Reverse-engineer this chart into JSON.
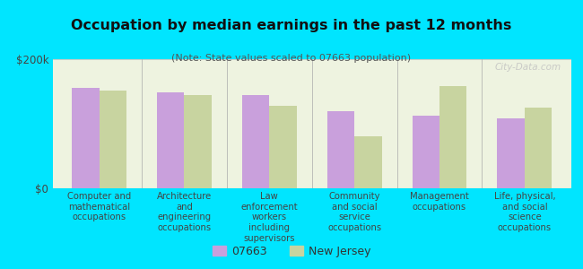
{
  "title": "Occupation by median earnings in the past 12 months",
  "subtitle": "(Note: State values scaled to 07663 population)",
  "categories": [
    "Computer and\nmathematical\noccupations",
    "Architecture\nand\nengineering\noccupations",
    "Law\nenforcement\nworkers\nincluding\nsupervisors",
    "Community\nand social\nservice\noccupations",
    "Management\noccupations",
    "Life, physical,\nand social\nscience\noccupations"
  ],
  "values_07663": [
    155000,
    148000,
    145000,
    120000,
    113000,
    108000
  ],
  "values_nj": [
    152000,
    145000,
    128000,
    80000,
    158000,
    125000
  ],
  "color_07663": "#c9a0dc",
  "color_nj": "#c8d4a0",
  "background_color": "#00e5ff",
  "plot_bg_color": "#eef3e0",
  "ylim": [
    0,
    200000
  ],
  "ytick_labels": [
    "$0",
    "$200k"
  ],
  "legend_07663": "07663",
  "legend_nj": "New Jersey",
  "watermark": "City-Data.com"
}
